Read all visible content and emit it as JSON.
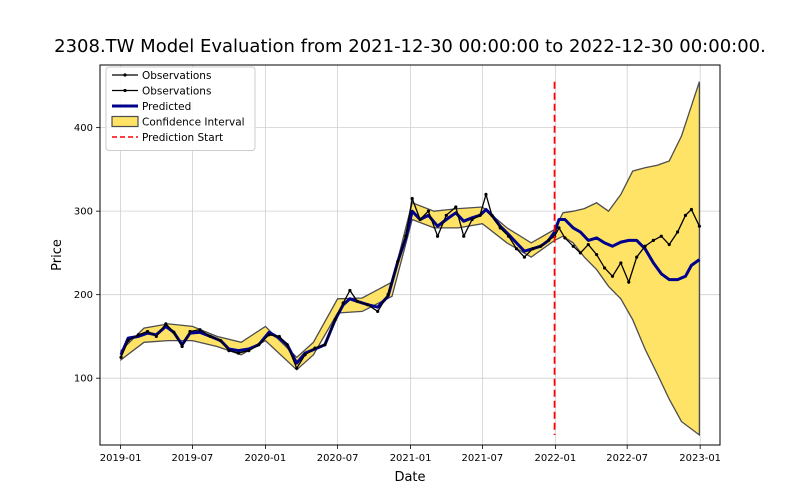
{
  "chart_data": {
    "type": "line",
    "title": "2308.TW Model Evaluation from 2021-12-30 00:00:00 to 2022-12-30 00:00:00.",
    "xlabel": "Date",
    "ylabel": "Price",
    "ylim": [
      20,
      475
    ],
    "xlim": [
      "2018-11-10",
      "2023-02-20"
    ],
    "x_ticks": [
      "2019-01",
      "2019-07",
      "2020-01",
      "2020-07",
      "2021-01",
      "2021-07",
      "2022-01",
      "2022-07",
      "2023-01"
    ],
    "y_ticks": [
      100,
      200,
      300,
      400
    ],
    "grid": true,
    "legend_position": "top-left",
    "prediction_start": "2021-12-30",
    "colors": {
      "observations": "#000000",
      "predicted": "#00008b",
      "confidence_fill": "#ffe366",
      "confidence_edge": "#4d4d4d",
      "prediction_start": "#ff0000"
    },
    "legend": [
      {
        "label": "Observations",
        "kind": "obs"
      },
      {
        "label": "Observations",
        "kind": "obs"
      },
      {
        "label": "Predicted",
        "kind": "pred"
      },
      {
        "label": "Confidence Interval",
        "kind": "ci"
      },
      {
        "label": "Prediction Start",
        "kind": "start"
      }
    ],
    "series": [
      {
        "name": "Observations",
        "points": [
          [
            "2019-01-02",
            125
          ],
          [
            "2019-01-20",
            145
          ],
          [
            "2019-02-15",
            152
          ],
          [
            "2019-03-10",
            156
          ],
          [
            "2019-04-01",
            150
          ],
          [
            "2019-04-25",
            165
          ],
          [
            "2019-05-15",
            155
          ],
          [
            "2019-06-05",
            138
          ],
          [
            "2019-06-25",
            156
          ],
          [
            "2019-07-20",
            158
          ],
          [
            "2019-08-15",
            150
          ],
          [
            "2019-09-10",
            145
          ],
          [
            "2019-10-01",
            133
          ],
          [
            "2019-10-25",
            130
          ],
          [
            "2019-11-20",
            133
          ],
          [
            "2019-12-15",
            140
          ],
          [
            "2020-01-10",
            152
          ],
          [
            "2020-02-05",
            150
          ],
          [
            "2020-02-25",
            140
          ],
          [
            "2020-03-20",
            112
          ],
          [
            "2020-04-10",
            128
          ],
          [
            "2020-05-05",
            136
          ],
          [
            "2020-05-30",
            140
          ],
          [
            "2020-06-25",
            170
          ],
          [
            "2020-07-15",
            190
          ],
          [
            "2020-08-01",
            205
          ],
          [
            "2020-08-20",
            192
          ],
          [
            "2020-09-15",
            188
          ],
          [
            "2020-10-10",
            180
          ],
          [
            "2020-11-05",
            200
          ],
          [
            "2020-11-30",
            240
          ],
          [
            "2020-12-20",
            270
          ],
          [
            "2021-01-05",
            315
          ],
          [
            "2021-01-25",
            290
          ],
          [
            "2021-02-15",
            300
          ],
          [
            "2021-03-10",
            270
          ],
          [
            "2021-04-01",
            295
          ],
          [
            "2021-04-25",
            305
          ],
          [
            "2021-05-15",
            270
          ],
          [
            "2021-06-05",
            290
          ],
          [
            "2021-06-25",
            295
          ],
          [
            "2021-07-10",
            320
          ],
          [
            "2021-07-25",
            295
          ],
          [
            "2021-08-15",
            280
          ],
          [
            "2021-09-05",
            270
          ],
          [
            "2021-09-25",
            255
          ],
          [
            "2021-10-15",
            245
          ],
          [
            "2021-11-05",
            255
          ],
          [
            "2021-11-25",
            258
          ],
          [
            "2021-12-15",
            265
          ],
          [
            "2021-12-30",
            270
          ],
          [
            "2022-01-10",
            280
          ],
          [
            "2022-01-25",
            268
          ],
          [
            "2022-02-15",
            258
          ],
          [
            "2022-03-05",
            250
          ],
          [
            "2022-03-25",
            260
          ],
          [
            "2022-04-15",
            248
          ],
          [
            "2022-05-05",
            232
          ],
          [
            "2022-05-25",
            222
          ],
          [
            "2022-06-15",
            238
          ],
          [
            "2022-07-05",
            215
          ],
          [
            "2022-07-25",
            245
          ],
          [
            "2022-08-15",
            258
          ],
          [
            "2022-09-05",
            265
          ],
          [
            "2022-09-25",
            270
          ],
          [
            "2022-10-15",
            260
          ],
          [
            "2022-11-05",
            275
          ],
          [
            "2022-11-25",
            295
          ],
          [
            "2022-12-10",
            302
          ],
          [
            "2022-12-30",
            282
          ]
        ]
      },
      {
        "name": "Predicted",
        "points": [
          [
            "2019-01-02",
            128
          ],
          [
            "2019-01-20",
            148
          ],
          [
            "2019-02-15",
            150
          ],
          [
            "2019-03-10",
            154
          ],
          [
            "2019-04-01",
            152
          ],
          [
            "2019-04-25",
            162
          ],
          [
            "2019-05-15",
            155
          ],
          [
            "2019-06-05",
            140
          ],
          [
            "2019-06-25",
            154
          ],
          [
            "2019-07-20",
            155
          ],
          [
            "2019-08-15",
            150
          ],
          [
            "2019-09-10",
            145
          ],
          [
            "2019-10-01",
            135
          ],
          [
            "2019-10-25",
            133
          ],
          [
            "2019-11-20",
            135
          ],
          [
            "2019-12-15",
            140
          ],
          [
            "2020-01-10",
            155
          ],
          [
            "2020-02-05",
            148
          ],
          [
            "2020-02-25",
            140
          ],
          [
            "2020-03-20",
            118
          ],
          [
            "2020-04-10",
            130
          ],
          [
            "2020-05-05",
            135
          ],
          [
            "2020-05-30",
            140
          ],
          [
            "2020-06-25",
            170
          ],
          [
            "2020-07-15",
            188
          ],
          [
            "2020-08-01",
            195
          ],
          [
            "2020-08-20",
            192
          ],
          [
            "2020-09-15",
            188
          ],
          [
            "2020-10-10",
            185
          ],
          [
            "2020-11-05",
            198
          ],
          [
            "2020-11-30",
            240
          ],
          [
            "2020-12-20",
            268
          ],
          [
            "2021-01-05",
            300
          ],
          [
            "2021-01-25",
            290
          ],
          [
            "2021-02-15",
            295
          ],
          [
            "2021-03-10",
            282
          ],
          [
            "2021-04-01",
            290
          ],
          [
            "2021-04-25",
            298
          ],
          [
            "2021-05-15",
            288
          ],
          [
            "2021-06-05",
            292
          ],
          [
            "2021-06-25",
            295
          ],
          [
            "2021-07-10",
            302
          ],
          [
            "2021-07-25",
            295
          ],
          [
            "2021-08-15",
            282
          ],
          [
            "2021-09-05",
            272
          ],
          [
            "2021-09-25",
            262
          ],
          [
            "2021-10-15",
            252
          ],
          [
            "2021-11-05",
            255
          ],
          [
            "2021-11-25",
            258
          ],
          [
            "2021-12-15",
            265
          ],
          [
            "2021-12-30",
            275
          ],
          [
            "2022-01-10",
            290
          ],
          [
            "2022-01-25",
            290
          ],
          [
            "2022-02-15",
            280
          ],
          [
            "2022-03-05",
            275
          ],
          [
            "2022-03-25",
            265
          ],
          [
            "2022-04-15",
            268
          ],
          [
            "2022-05-05",
            262
          ],
          [
            "2022-05-25",
            258
          ],
          [
            "2022-06-15",
            263
          ],
          [
            "2022-07-05",
            265
          ],
          [
            "2022-07-25",
            265
          ],
          [
            "2022-08-15",
            255
          ],
          [
            "2022-09-05",
            238
          ],
          [
            "2022-09-25",
            225
          ],
          [
            "2022-10-15",
            218
          ],
          [
            "2022-11-05",
            218
          ],
          [
            "2022-11-25",
            222
          ],
          [
            "2022-12-10",
            235
          ],
          [
            "2022-12-30",
            242
          ]
        ]
      }
    ],
    "confidence_interval": {
      "x": [
        "2019-01-02",
        "2019-03-01",
        "2019-05-01",
        "2019-07-01",
        "2019-09-01",
        "2019-11-01",
        "2020-01-01",
        "2020-03-20",
        "2020-05-01",
        "2020-07-01",
        "2020-09-01",
        "2020-11-15",
        "2021-01-05",
        "2021-03-01",
        "2021-05-01",
        "2021-07-01",
        "2021-09-01",
        "2021-11-01",
        "2021-12-30",
        "2022-01-20",
        "2022-02-15",
        "2022-03-15",
        "2022-04-15",
        "2022-05-15",
        "2022-06-15",
        "2022-07-15",
        "2022-08-15",
        "2022-09-15",
        "2022-10-15",
        "2022-11-15",
        "2022-12-30"
      ],
      "upper": [
        133,
        160,
        165,
        162,
        150,
        143,
        162,
        125,
        143,
        195,
        196,
        215,
        310,
        300,
        303,
        305,
        280,
        262,
        278,
        298,
        300,
        303,
        310,
        300,
        320,
        348,
        352,
        355,
        360,
        390,
        455
      ],
      "lower": [
        122,
        143,
        145,
        145,
        138,
        128,
        145,
        110,
        128,
        178,
        180,
        198,
        290,
        280,
        280,
        285,
        262,
        245,
        265,
        270,
        262,
        245,
        230,
        210,
        195,
        170,
        135,
        105,
        75,
        48,
        32
      ]
    }
  }
}
